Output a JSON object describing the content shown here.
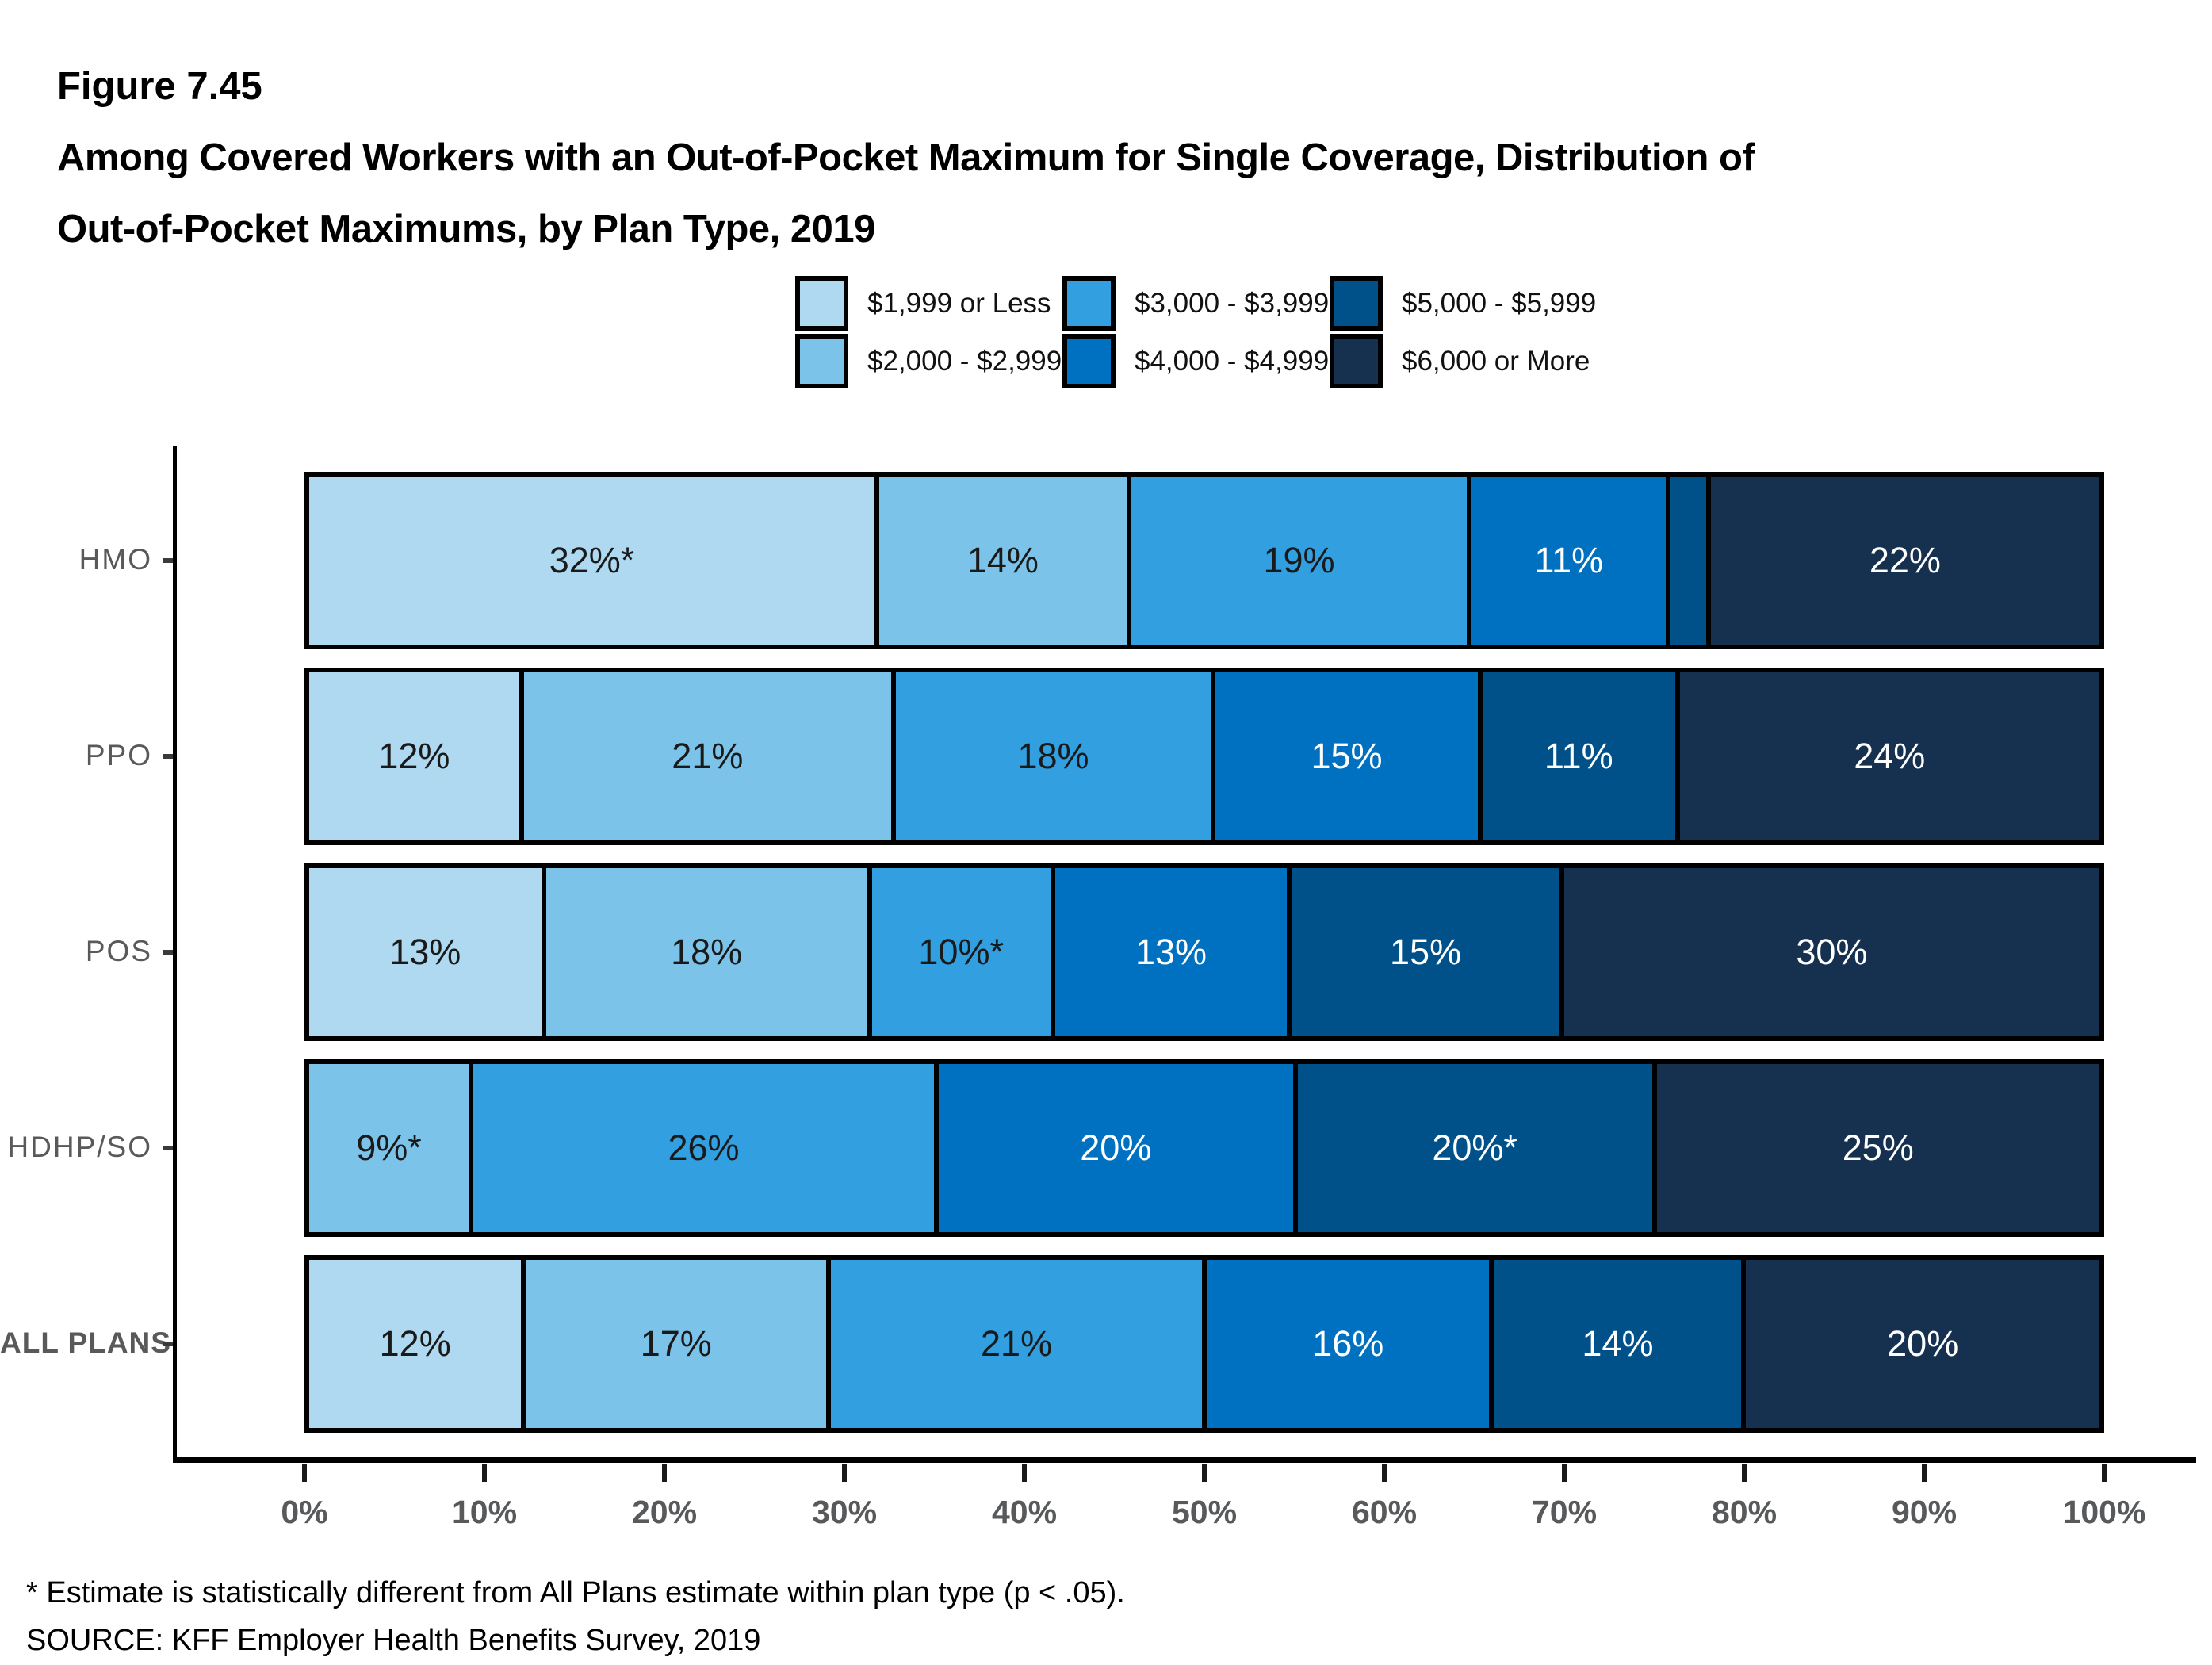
{
  "figure": {
    "label": "Figure 7.45",
    "title_line1": "Among Covered Workers with an Out-of-Pocket Maximum for Single Coverage, Distribution of",
    "title_line2": "Out-of-Pocket Maximums, by Plan Type, 2019"
  },
  "footnote": "* Estimate is statistically different from All Plans estimate within plan type (p < .05).",
  "source": "SOURCE: KFF Employer Health Benefits Survey, 2019",
  "colors": {
    "axis_line": "#000000",
    "axis_tick": "#1a1a1a",
    "axis_text": "#595959",
    "bar_border": "#000000"
  },
  "chart_data": {
    "type": "bar",
    "stacked": true,
    "orientation": "horizontal",
    "unit": "percent",
    "title": "Among Covered Workers with an Out-of-Pocket Maximum for Single Coverage, Distribution of Out-of-Pocket Maximums, by Plan Type, 2019",
    "categories": [
      "HMO",
      "PPO",
      "POS",
      "HDHP/SO",
      "ALL PLANS"
    ],
    "x_axis": {
      "range": [
        0,
        100
      ],
      "tick_labels": [
        "0%",
        "10%",
        "20%",
        "30%",
        "40%",
        "50%",
        "60%",
        "70%",
        "80%",
        "90%",
        "100%"
      ]
    },
    "legend_position": "top",
    "series": [
      {
        "name": "$1,999 or Less",
        "color": "#AED9F1",
        "text_color": "#1a1a1a",
        "values": [
          32,
          12,
          13,
          0,
          12
        ],
        "labels": [
          "32%*",
          "12%",
          "13%",
          "",
          "12%"
        ]
      },
      {
        "name": "$2,000 - $2,999",
        "color": "#7CC3EA",
        "text_color": "#1a1a1a",
        "values": [
          14,
          21,
          18,
          9,
          17
        ],
        "labels": [
          "14%",
          "21%",
          "18%",
          "9%*",
          "17%"
        ]
      },
      {
        "name": "$3,000 - $3,999",
        "color": "#319FE0",
        "text_color": "#1a1a1a",
        "values": [
          19,
          18,
          10,
          26,
          21
        ],
        "labels": [
          "19%",
          "18%",
          "10%*",
          "26%",
          "21%"
        ]
      },
      {
        "name": "$4,000 - $4,999",
        "color": "#0071C1",
        "text_color": "#ffffff",
        "values": [
          11,
          15,
          13,
          20,
          16
        ],
        "labels": [
          "11%",
          "15%",
          "13%",
          "20%",
          "16%"
        ]
      },
      {
        "name": "$5,000 - $5,999",
        "color": "#00518A",
        "text_color": "#ffffff",
        "values": [
          2,
          11,
          15,
          20,
          14
        ],
        "labels": [
          "",
          "11%",
          "15%",
          "20%*",
          "14%"
        ]
      },
      {
        "name": "$6,000 or More",
        "color": "#16314F",
        "text_color": "#ffffff",
        "values": [
          22,
          24,
          30,
          25,
          20
        ],
        "labels": [
          "22%",
          "24%",
          "30%",
          "25%",
          "20%"
        ]
      }
    ]
  }
}
